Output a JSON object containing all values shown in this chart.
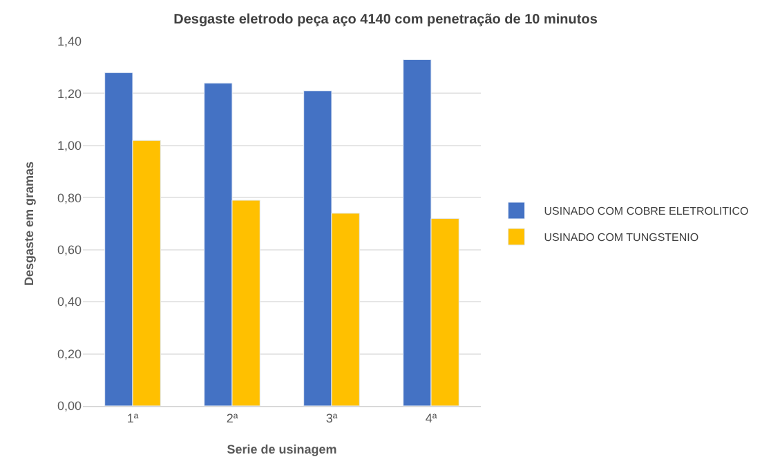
{
  "chart_data": {
    "type": "bar",
    "title": "Desgaste eletrodo peça aço 4140 com penetração de 10 minutos",
    "xlabel": "Serie de usinagem",
    "ylabel": "Desgaste em gramas",
    "categories": [
      "1ª",
      "2ª",
      "3ª",
      "4ª"
    ],
    "series": [
      {
        "name": "USINADO COM COBRE ELETROLITICO",
        "color": "#4472c4",
        "values": [
          1.28,
          1.24,
          1.21,
          1.33
        ]
      },
      {
        "name": "USINADO COM TUNGSTENIO",
        "color": "#ffc000",
        "values": [
          1.02,
          0.79,
          0.74,
          0.72
        ]
      }
    ],
    "ylim": [
      0,
      1.4
    ],
    "yticks": [
      {
        "value": 0,
        "label": "0,00"
      },
      {
        "value": 0.2,
        "label": "0,20"
      },
      {
        "value": 0.4,
        "label": "0,40"
      },
      {
        "value": 0.6,
        "label": "0,60"
      },
      {
        "value": 0.8,
        "label": "0,80"
      },
      {
        "value": 1.0,
        "label": "1,00"
      },
      {
        "value": 1.2,
        "label": "1,20"
      },
      {
        "value": 1.4,
        "label": "1,40"
      }
    ],
    "grid": "y",
    "legend": "right"
  }
}
